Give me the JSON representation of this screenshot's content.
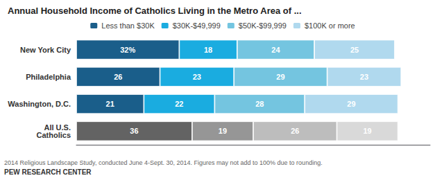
{
  "chart_data": {
    "type": "bar",
    "orientation": "horizontal",
    "stacked": true,
    "title": "Annual Household Income of Catholics Living in the Metro Area of ...",
    "categories": [
      "New York City",
      "Philadelphia",
      "Washington, D.C.",
      "All U.S.\nCatholics"
    ],
    "series": [
      {
        "name": "Less than $30K",
        "values": [
          32,
          26,
          21,
          36
        ],
        "value_labels": [
          "32%",
          "26",
          "21",
          "36"
        ],
        "colors": [
          "#1a5e8a",
          "#1a5e8a",
          "#1a5e8a",
          "#636363"
        ]
      },
      {
        "name": "$30K-$49,999",
        "values": [
          18,
          23,
          22,
          19
        ],
        "colors": [
          "#1aace0",
          "#1aace0",
          "#1aace0",
          "#969696"
        ]
      },
      {
        "name": "$50K-$99,999",
        "values": [
          24,
          29,
          28,
          26
        ],
        "colors": [
          "#74c5e0",
          "#74c5e0",
          "#74c5e0",
          "#bdbdbd"
        ]
      },
      {
        "name": "$100K or more",
        "values": [
          25,
          23,
          29,
          19
        ],
        "colors": [
          "#b0d9ee",
          "#b0d9ee",
          "#b0d9ee",
          "#d9d9d9"
        ]
      }
    ],
    "xlim": [
      0,
      110
    ],
    "tick_labels": "y",
    "grid": false,
    "legend": "top",
    "data_labels": true,
    "annotations": [
      "2014 Religious Landscape Study, conducted June 4-Sept. 30, 2014. Figures may not add to 100% due to rounding.",
      "PEW RESEARCH CENTER"
    ]
  }
}
